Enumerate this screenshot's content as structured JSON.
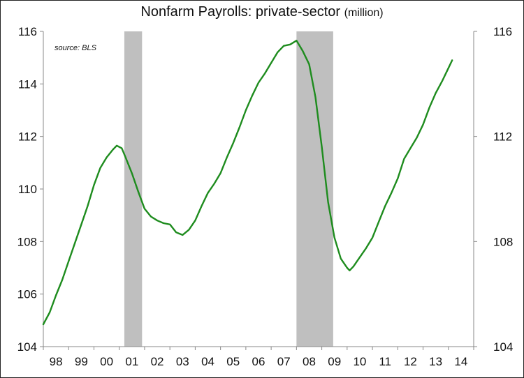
{
  "chart_data": {
    "type": "line",
    "title": "Nonfarm Payrolls: private-sector",
    "title_unit": "(million)",
    "source_note": "source: BLS",
    "x_tick_labels": [
      "98",
      "99",
      "00",
      "01",
      "02",
      "03",
      "04",
      "05",
      "06",
      "07",
      "08",
      "09",
      "10",
      "11",
      "12",
      "13",
      "14"
    ],
    "left_y_ticks": [
      104,
      106,
      108,
      110,
      112,
      114,
      116
    ],
    "right_y_ticks": [
      104,
      108,
      112,
      116
    ],
    "ylim": [
      104,
      116
    ],
    "xlim": [
      1998.0,
      2015.0
    ],
    "grid": false,
    "recessions": [
      {
        "start": 2001.2,
        "end": 2001.9
      },
      {
        "start": 2008.0,
        "end": 2009.45
      }
    ],
    "series": [
      {
        "color": "#1e8c1e",
        "points": [
          [
            1998.0,
            104.85
          ],
          [
            1998.25,
            105.3
          ],
          [
            1998.5,
            105.95
          ],
          [
            1998.75,
            106.55
          ],
          [
            1999.0,
            107.25
          ],
          [
            1999.25,
            107.95
          ],
          [
            1999.5,
            108.65
          ],
          [
            1999.75,
            109.35
          ],
          [
            2000.0,
            110.15
          ],
          [
            2000.25,
            110.8
          ],
          [
            2000.5,
            111.2
          ],
          [
            2000.75,
            111.5
          ],
          [
            2000.9,
            111.65
          ],
          [
            2001.1,
            111.55
          ],
          [
            2001.25,
            111.2
          ],
          [
            2001.5,
            110.6
          ],
          [
            2001.75,
            109.9
          ],
          [
            2002.0,
            109.25
          ],
          [
            2002.25,
            108.95
          ],
          [
            2002.5,
            108.8
          ],
          [
            2002.75,
            108.7
          ],
          [
            2003.0,
            108.65
          ],
          [
            2003.25,
            108.35
          ],
          [
            2003.5,
            108.25
          ],
          [
            2003.75,
            108.45
          ],
          [
            2004.0,
            108.8
          ],
          [
            2004.25,
            109.35
          ],
          [
            2004.5,
            109.85
          ],
          [
            2004.75,
            110.2
          ],
          [
            2005.0,
            110.6
          ],
          [
            2005.25,
            111.2
          ],
          [
            2005.5,
            111.75
          ],
          [
            2005.75,
            112.35
          ],
          [
            2006.0,
            113.0
          ],
          [
            2006.25,
            113.55
          ],
          [
            2006.5,
            114.05
          ],
          [
            2006.75,
            114.4
          ],
          [
            2007.0,
            114.8
          ],
          [
            2007.25,
            115.2
          ],
          [
            2007.5,
            115.45
          ],
          [
            2007.75,
            115.5
          ],
          [
            2008.0,
            115.65
          ],
          [
            2008.25,
            115.25
          ],
          [
            2008.5,
            114.75
          ],
          [
            2008.75,
            113.5
          ],
          [
            2009.0,
            111.6
          ],
          [
            2009.25,
            109.5
          ],
          [
            2009.5,
            108.15
          ],
          [
            2009.75,
            107.35
          ],
          [
            2010.0,
            107.0
          ],
          [
            2010.1,
            106.9
          ],
          [
            2010.25,
            107.05
          ],
          [
            2010.5,
            107.4
          ],
          [
            2010.75,
            107.75
          ],
          [
            2011.0,
            108.15
          ],
          [
            2011.25,
            108.75
          ],
          [
            2011.5,
            109.35
          ],
          [
            2011.75,
            109.85
          ],
          [
            2012.0,
            110.4
          ],
          [
            2012.25,
            111.15
          ],
          [
            2012.5,
            111.55
          ],
          [
            2012.75,
            111.95
          ],
          [
            2013.0,
            112.45
          ],
          [
            2013.25,
            113.1
          ],
          [
            2013.5,
            113.65
          ],
          [
            2013.75,
            114.1
          ],
          [
            2014.0,
            114.6
          ],
          [
            2014.15,
            114.9
          ]
        ]
      }
    ]
  }
}
